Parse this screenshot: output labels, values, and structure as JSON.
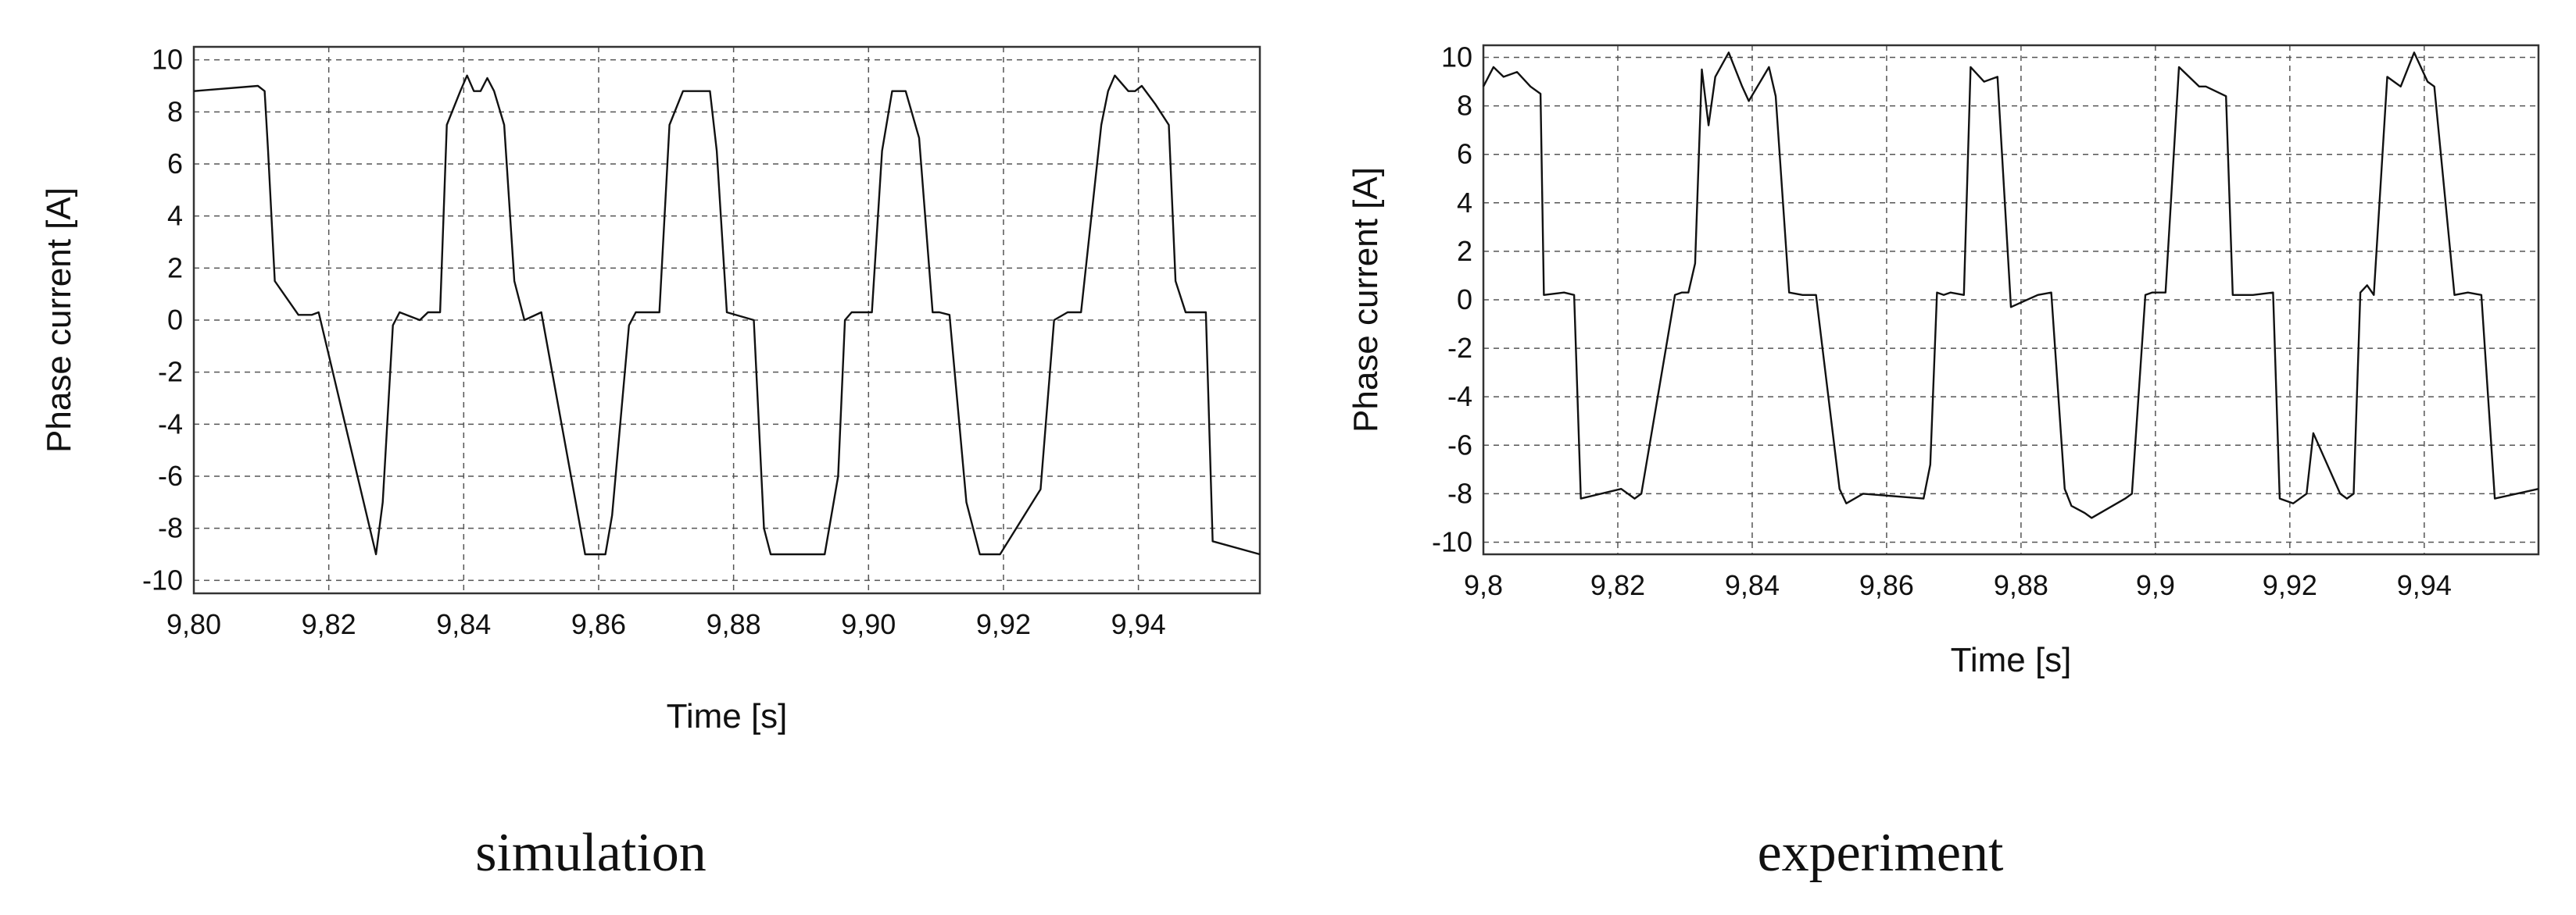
{
  "chart_data": [
    {
      "type": "line",
      "title": "",
      "xlabel": "Time [s]",
      "ylabel": "Phase current [A]",
      "xlim": [
        9.8,
        9.958
      ],
      "ylim": [
        -10.5,
        10.5
      ],
      "grid": true,
      "xticks": [
        9.8,
        9.82,
        9.84,
        9.86,
        9.88,
        9.9,
        9.92,
        9.94
      ],
      "xtick_labels": [
        "9,80",
        "9,82",
        "9,84",
        "9,86",
        "9,88",
        "9,90",
        "9,92",
        "9,94"
      ],
      "yticks": [
        10,
        8,
        6,
        4,
        2,
        0,
        -2,
        -4,
        -6,
        -8,
        -10
      ],
      "ytick_labels": [
        "10",
        "8",
        "6",
        "4",
        "2",
        "0",
        "-2",
        "-4",
        "-6",
        "-8",
        "-10"
      ],
      "caption": "simulation",
      "series": [
        {
          "x": [
            9.8,
            9.8095,
            9.8105,
            9.811,
            9.812,
            9.8155,
            9.8175,
            9.8185,
            9.827,
            9.828,
            9.8295,
            9.8305,
            9.8305,
            9.8335,
            9.8347,
            9.8365,
            9.8375,
            9.8395,
            9.8405,
            9.8415,
            9.8425,
            9.8435,
            9.8445,
            9.846,
            9.8475,
            9.849,
            9.8515,
            9.858,
            9.861,
            9.862,
            9.8645,
            9.8655,
            9.8665,
            9.8685,
            9.869,
            9.8705,
            9.8725,
            9.8765,
            9.8775,
            9.879,
            9.879,
            9.883,
            9.8845,
            9.8855,
            9.8935,
            9.8955,
            9.8965,
            9.8975,
            9.899,
            9.9005,
            9.902,
            9.9035,
            9.9055,
            9.9075,
            9.9095,
            9.9105,
            9.912,
            9.9145,
            9.9165,
            9.9195,
            9.9255,
            9.9275,
            9.9295,
            9.9305,
            9.9315,
            9.9345,
            9.9355,
            9.9365,
            9.9385,
            9.9395,
            9.9405,
            9.9425,
            9.9445,
            9.9455,
            9.947,
            9.95,
            9.951,
            9.958
          ],
          "y": [
            8.8,
            9,
            8.8,
            6.5,
            1.5,
            0.2,
            0.2,
            0.3,
            -9,
            -7,
            -0.2,
            0.3,
            0.3,
            0,
            0.3,
            0.3,
            7.5,
            8.8,
            9.4,
            8.8,
            8.8,
            9.3,
            8.8,
            7.5,
            1.5,
            0,
            0.3,
            -9,
            -9,
            -7.5,
            -0.2,
            0.3,
            0.3,
            0.3,
            0.3,
            7.5,
            8.8,
            8.8,
            6.5,
            0.3,
            0.3,
            0,
            -8,
            -9,
            -9,
            -6,
            0,
            0.3,
            0.3,
            0.3,
            6.5,
            8.8,
            8.8,
            7,
            0.3,
            0.3,
            0.2,
            -7,
            -9,
            -9,
            -6.5,
            0,
            0.3,
            0.3,
            0.3,
            7.5,
            8.8,
            9.4,
            8.8,
            8.8,
            9,
            8.3,
            7.5,
            1.5,
            0.3,
            0.3,
            -8.5,
            -9
          ]
        }
      ]
    },
    {
      "type": "line",
      "title": "",
      "xlabel": "Time [s]",
      "ylabel": "Phase current [A]",
      "xlim": [
        9.8,
        9.957
      ],
      "ylim": [
        -10.5,
        10.5
      ],
      "grid": true,
      "xticks": [
        9.8,
        9.82,
        9.84,
        9.86,
        9.88,
        9.9,
        9.92,
        9.94
      ],
      "xtick_labels": [
        "9,8",
        "9,82",
        "9,84",
        "9,86",
        "9,88",
        "9,9",
        "9,92",
        "9,94"
      ],
      "yticks": [
        10,
        8,
        6,
        4,
        2,
        0,
        -2,
        -4,
        -6,
        -8,
        -10
      ],
      "ytick_labels": [
        "10",
        "8",
        "6",
        "4",
        "2",
        "0",
        "-2",
        "-4",
        "-6",
        "-8",
        "-10"
      ],
      "caption": "experiment",
      "series": [
        {
          "x": [
            9.8,
            9.8015,
            9.803,
            9.805,
            9.807,
            9.8085,
            9.809,
            9.812,
            9.8135,
            9.8145,
            9.8205,
            9.8225,
            9.8235,
            9.8285,
            9.8295,
            9.8305,
            9.8315,
            9.8325,
            9.8335,
            9.8345,
            9.8365,
            9.8385,
            9.8395,
            9.8425,
            9.8435,
            9.8455,
            9.8475,
            9.8495,
            9.853,
            9.854,
            9.8565,
            9.8655,
            9.8665,
            9.8675,
            9.8685,
            9.8695,
            9.8715,
            9.8725,
            9.8745,
            9.8765,
            9.8785,
            9.8825,
            9.8845,
            9.8865,
            9.8875,
            9.8895,
            9.8905,
            9.8955,
            9.8965,
            9.8985,
            9.8995,
            9.9015,
            9.9035,
            9.9065,
            9.9075,
            9.9105,
            9.9115,
            9.9145,
            9.9175,
            9.9185,
            9.9205,
            9.9225,
            9.9235,
            9.9275,
            9.9285,
            9.9295,
            9.9305,
            9.9315,
            9.9325,
            9.9345,
            9.9355,
            9.9365,
            9.9385,
            9.9405,
            9.9415,
            9.9445,
            9.9465,
            9.9485,
            9.9505,
            9.957
          ],
          "y": [
            8.8,
            9.6,
            9.2,
            9.4,
            8.8,
            8.5,
            0.2,
            0.3,
            0.2,
            -8.2,
            -7.8,
            -8.2,
            -8,
            0.2,
            0.3,
            0.3,
            1.5,
            9.5,
            7.2,
            9.2,
            10.2,
            8.8,
            8.2,
            9.6,
            8.4,
            0.3,
            0.2,
            0.2,
            -7.8,
            -8.4,
            -8,
            -8.2,
            -6.8,
            0.3,
            0.2,
            0.3,
            0.2,
            9.6,
            9,
            9.2,
            -0.3,
            0.2,
            0.3,
            -7.8,
            -8.5,
            -8.8,
            -9,
            -8.2,
            -8,
            0.2,
            0.3,
            0.3,
            9.6,
            8.8,
            8.8,
            8.4,
            0.2,
            0.2,
            0.3,
            -8.2,
            -8.4,
            -8,
            -5.5,
            -8,
            -8.2,
            -8,
            0.3,
            0.6,
            0.2,
            9.2,
            9,
            8.8,
            10.2,
            9,
            8.8,
            0.2,
            0.3,
            0.2,
            -8.2,
            -7.8
          ]
        }
      ]
    }
  ]
}
